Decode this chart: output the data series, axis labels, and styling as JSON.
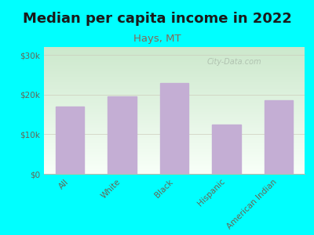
{
  "title": "Median per capita income in 2022",
  "subtitle": "Hays, MT",
  "categories": [
    "All",
    "White",
    "Black",
    "Hispanic",
    "American Indian"
  ],
  "values": [
    17000,
    19500,
    23000,
    12500,
    18500
  ],
  "bar_color": "#c4aed4",
  "bg_color": "#00ffff",
  "title_color": "#1a1a1a",
  "subtitle_color": "#886655",
  "tick_color": "#666655",
  "ytick_labels": [
    "$0",
    "$10k",
    "$20k",
    "$30k"
  ],
  "ytick_values": [
    0,
    10000,
    20000,
    30000
  ],
  "ylim": [
    0,
    32000
  ],
  "watermark": "City-Data.com",
  "xlabel_fontsize": 7.5,
  "ylabel_fontsize": 7.5,
  "title_fontsize": 13,
  "subtitle_fontsize": 9.5,
  "grad_top": "#cce8cc",
  "grad_bottom": "#f8fff8"
}
